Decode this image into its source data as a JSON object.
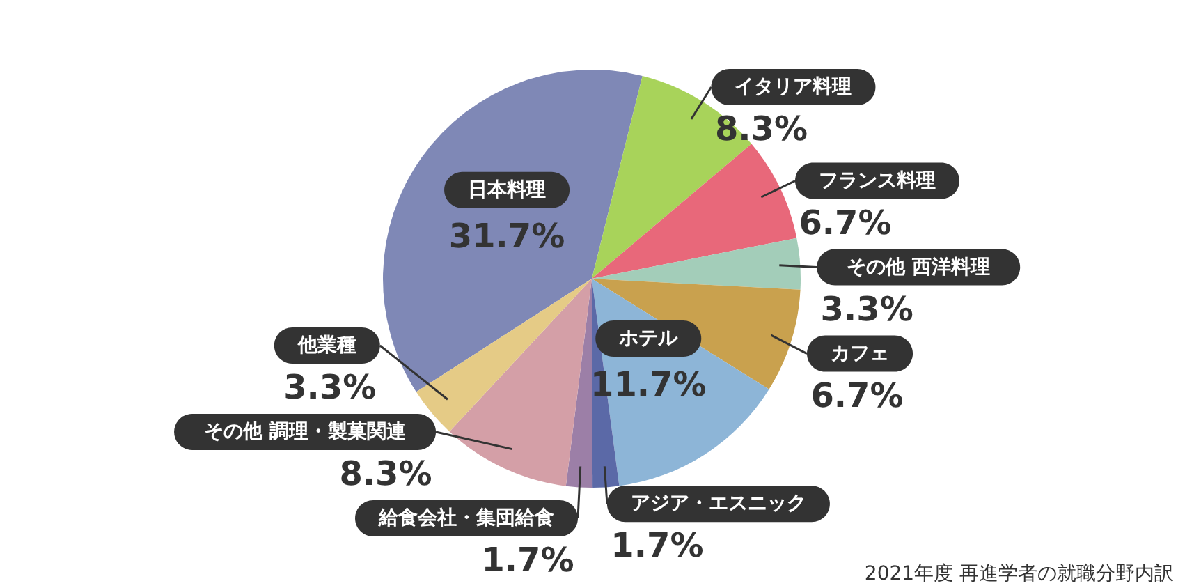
{
  "chart_data": {
    "type": "pie",
    "categories": [
      "日本料理",
      "イタリア料理",
      "フランス料理",
      "その他 西洋料理",
      "カフェ",
      "ホテル",
      "アジア・エスニック",
      "給食会社・集団給食",
      "その他 調理・製菓関連",
      "他業種"
    ],
    "values": [
      31.7,
      8.3,
      6.7,
      3.3,
      6.7,
      11.7,
      1.7,
      1.7,
      8.3,
      3.3
    ],
    "colors": [
      "#7f88b6",
      "#a8d35a",
      "#e8687a",
      "#a3cdb9",
      "#c9a14e",
      "#8db5d7",
      "#5b69a7",
      "#9c7fa7",
      "#d49fa7",
      "#e5cb86"
    ],
    "value_labels": [
      "31.7%",
      "8.3%",
      "6.7%",
      "3.3%",
      "6.7%",
      "11.7%",
      "1.7%",
      "1.7%",
      "8.3%",
      "3.3%"
    ],
    "annotations": [
      "2021年度 再進学者の就職分野内訳"
    ]
  }
}
